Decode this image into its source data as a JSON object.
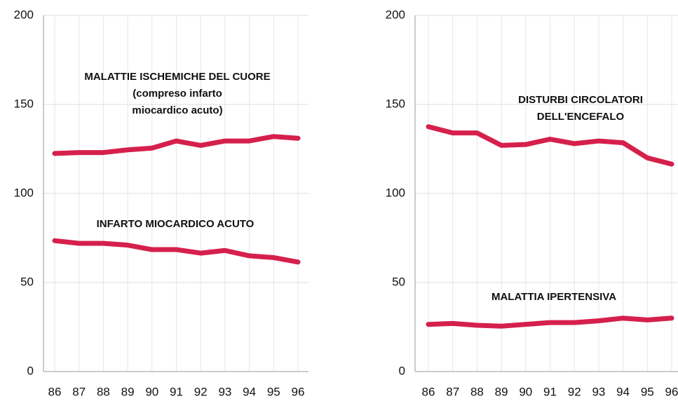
{
  "chart_data": [
    {
      "type": "line",
      "categories": [
        "86",
        "87",
        "88",
        "89",
        "90",
        "91",
        "92",
        "93",
        "94",
        "95",
        "96"
      ],
      "ylim": [
        0,
        200
      ],
      "yticks": [
        0,
        50,
        100,
        150,
        200
      ],
      "grid": true,
      "series": [
        {
          "label": [
            "MALATTIE ISCHEMICHE DEL CUORE",
            "(compreso infarto",
            "miocardico acuto)"
          ],
          "color": "#d6204c",
          "values": [
            122.5,
            123,
            123,
            124.5,
            125.5,
            129.5,
            127,
            129.5,
            129.5,
            132,
            131
          ]
        },
        {
          "label": [
            "INFARTO MIOCARDICO ACUTO"
          ],
          "color": "#d6204c",
          "values": [
            73.5,
            72,
            72,
            71,
            68.5,
            68.5,
            66.5,
            68,
            65,
            64,
            61.5
          ]
        }
      ]
    },
    {
      "type": "line",
      "categories": [
        "86",
        "87",
        "88",
        "89",
        "90",
        "91",
        "92",
        "93",
        "94",
        "95",
        "96"
      ],
      "ylim": [
        0,
        200
      ],
      "yticks": [
        0,
        50,
        100,
        150,
        200
      ],
      "grid": true,
      "series": [
        {
          "label": [
            "DISTURBI CIRCOLATORI",
            "DELL'ENCEFALO"
          ],
          "color": "#d6204c",
          "values": [
            137.5,
            134,
            134,
            127,
            127.5,
            130.5,
            128,
            129.5,
            128.5,
            120,
            116.5
          ]
        },
        {
          "label": [
            "MALATTIA IPERTENSIVA"
          ],
          "color": "#d6204c",
          "values": [
            26.5,
            27,
            26,
            25.5,
            26.5,
            27.5,
            27.5,
            28.5,
            30,
            29,
            30
          ]
        }
      ]
    }
  ]
}
